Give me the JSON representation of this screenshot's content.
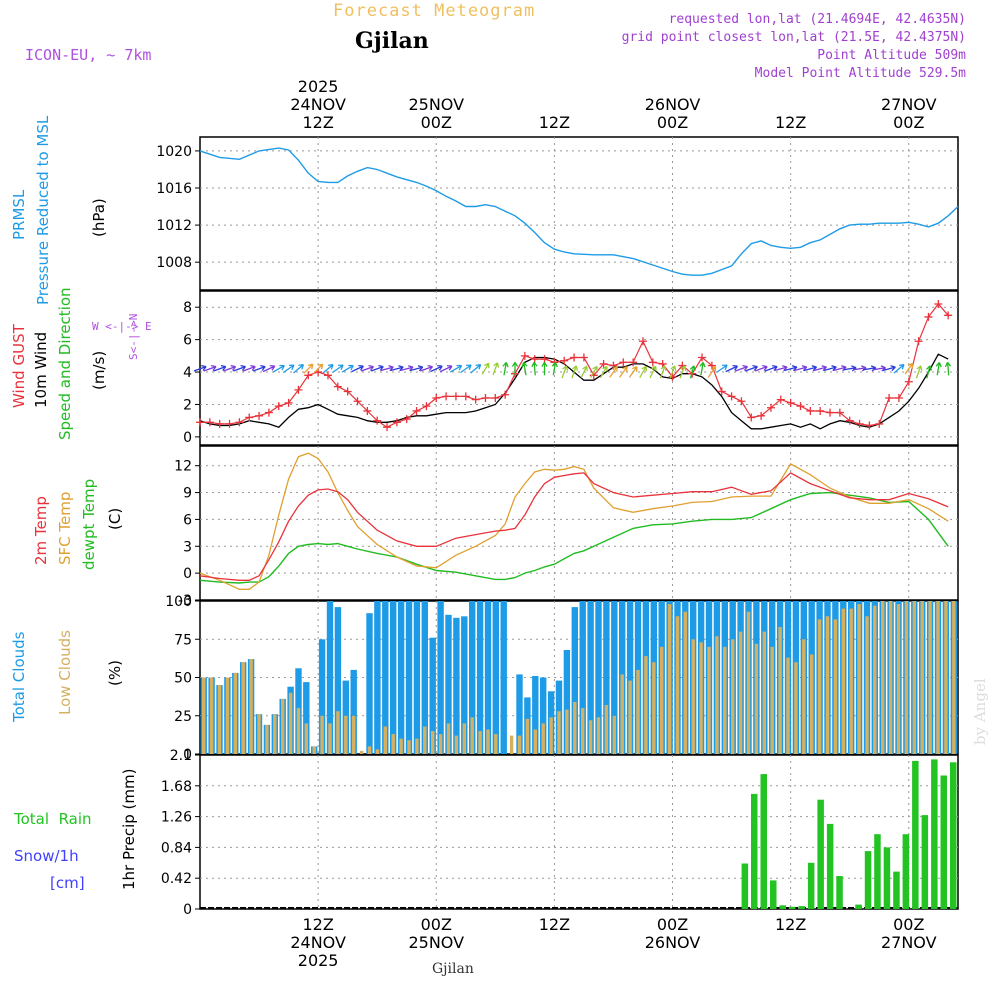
{
  "header": {
    "title": "Forecast Meteogram",
    "city": "Gjilan",
    "model": "ICON-EU, ~ 7km",
    "requested": "requested lon,lat (21.4694E, 42.4635N)",
    "grid_point": "grid point closest lon,lat (21.5E, 42.4375N)",
    "point_altitude": "Point Altitude 509m",
    "model_altitude": "Model Point Altitude 529.5m",
    "footer_city": "Gjilan",
    "watermark": "by Angel"
  },
  "colors": {
    "pressure": "#1e9be6",
    "gust": "#e8333b",
    "wind": "#000000",
    "direction": "#22bb22",
    "temp2m": "#e8333b",
    "sfctemp": "#e0a030",
    "dewpt": "#22bb22",
    "total_clouds": "#1e9be6",
    "low_clouds": "#d4b060",
    "rain": "#22c322",
    "snow": "#4040ff",
    "compass": "#b050e0"
  },
  "time_axis": {
    "top": [
      {
        "t": 12,
        "l1": "2025",
        "l2": "24NOV",
        "l3": "12Z"
      },
      {
        "t": 24,
        "l1": "",
        "l2": "25NOV",
        "l3": "00Z"
      },
      {
        "t": 36,
        "l1": "",
        "l2": "",
        "l3": "12Z"
      },
      {
        "t": 48,
        "l1": "",
        "l2": "26NOV",
        "l3": "00Z"
      },
      {
        "t": 60,
        "l1": "",
        "l2": "",
        "l3": "12Z"
      },
      {
        "t": 72,
        "l1": "",
        "l2": "27NOV",
        "l3": "00Z"
      }
    ],
    "bottom": [
      {
        "t": 12,
        "l1": "12Z",
        "l2": "24NOV",
        "l3": "2025"
      },
      {
        "t": 24,
        "l1": "00Z",
        "l2": "25NOV",
        "l3": ""
      },
      {
        "t": 36,
        "l1": "12Z",
        "l2": "",
        "l3": ""
      },
      {
        "t": 48,
        "l1": "00Z",
        "l2": "26NOV",
        "l3": ""
      },
      {
        "t": 60,
        "l1": "12Z",
        "l2": "",
        "l3": ""
      },
      {
        "t": 72,
        "l1": "00Z",
        "l2": "27NOV",
        "l3": ""
      }
    ]
  },
  "labels": {
    "pressure": [
      "PRMSL",
      "Pressure Reduced to MSL",
      "(hPa)"
    ],
    "wind": [
      "Wind GUST",
      "10m Wind",
      "Speed and Direction",
      "(m/s)"
    ],
    "compass": [
      "N",
      "W <-|-> E",
      "S"
    ],
    "temp": [
      "2m Temp",
      "SFC Temp",
      "dewpt Temp",
      "(C)"
    ],
    "clouds": [
      "Total Clouds",
      "Low Clouds",
      "(%)"
    ],
    "precip": [
      "Total  Rain",
      "Snow/1h",
      "[cm]",
      "1hr Precip (mm)"
    ]
  },
  "chart_data": [
    {
      "type": "line",
      "name": "pressure",
      "title": "PRMSL Pressure Reduced to MSL",
      "ylabel": "(hPa)",
      "ylim": [
        1005,
        1021.5
      ],
      "yticks": [
        1008,
        1012,
        1016,
        1020
      ],
      "x_hours": [
        0,
        2,
        4,
        6,
        8,
        9,
        10,
        11,
        12,
        13,
        14,
        15,
        16,
        17,
        18,
        19,
        20,
        21,
        22,
        23,
        24,
        25,
        26,
        27,
        28,
        29,
        30,
        31,
        32,
        33,
        34,
        35,
        36,
        37,
        38,
        40,
        42,
        44,
        46,
        48,
        49,
        50,
        51,
        52,
        53,
        54,
        55,
        56,
        57,
        58,
        59,
        60,
        61,
        62,
        63,
        64,
        65,
        66,
        67,
        68,
        69,
        70,
        71,
        72,
        73,
        74,
        75,
        76,
        77
      ],
      "values": [
        1020,
        1019.3,
        1019.1,
        1020,
        1020.3,
        1020.1,
        1019,
        1017.6,
        1016.7,
        1016.6,
        1016.6,
        1017.3,
        1017.8,
        1018.2,
        1018.0,
        1017.6,
        1017.2,
        1016.9,
        1016.6,
        1016.2,
        1015.7,
        1015.1,
        1014.6,
        1014.0,
        1014.0,
        1014.2,
        1014.0,
        1013.5,
        1013.0,
        1012.2,
        1011.2,
        1010.1,
        1009.4,
        1009.1,
        1008.9,
        1008.8,
        1008.8,
        1008.4,
        1007.7,
        1007.0,
        1006.7,
        1006.6,
        1006.6,
        1006.8,
        1007.2,
        1007.6,
        1008.9,
        1010.0,
        1010.3,
        1009.8,
        1009.6,
        1009.5,
        1009.6,
        1010.1,
        1010.4,
        1011.0,
        1011.6,
        1012.0,
        1012.1,
        1012.1,
        1012.2,
        1012.2,
        1012.2,
        1012.3,
        1012.1,
        1011.8,
        1012.2,
        1013.0,
        1014.0
      ]
    },
    {
      "type": "line",
      "name": "wind",
      "title": "Wind GUST / 10m Wind Speed and Direction",
      "ylabel": "(m/s)",
      "ylim": [
        -0.5,
        9
      ],
      "yticks": [
        0,
        2,
        4,
        6,
        8
      ],
      "x_hours": [
        0,
        1,
        2,
        3,
        4,
        5,
        6,
        7,
        8,
        9,
        10,
        11,
        12,
        13,
        14,
        15,
        16,
        17,
        18,
        19,
        20,
        21,
        22,
        23,
        24,
        25,
        26,
        27,
        28,
        29,
        30,
        31,
        32,
        33,
        34,
        35,
        36,
        37,
        38,
        39,
        40,
        41,
        42,
        43,
        44,
        45,
        46,
        47,
        48,
        49,
        50,
        51,
        52,
        53,
        54,
        55,
        56,
        57,
        58,
        59,
        60,
        61,
        62,
        63,
        64,
        65,
        66,
        67,
        68,
        69,
        70,
        71,
        72,
        73,
        74,
        75,
        76
      ],
      "series": [
        {
          "name": "Wind GUST",
          "values": [
            0.9,
            0.9,
            0.8,
            0.8,
            0.9,
            1.2,
            1.3,
            1.5,
            1.9,
            2.1,
            2.9,
            3.8,
            4.0,
            3.8,
            3.1,
            2.8,
            2.2,
            1.6,
            1.0,
            0.6,
            0.9,
            1.1,
            1.6,
            1.9,
            2.4,
            2.5,
            2.5,
            2.5,
            2.3,
            2.4,
            2.4,
            2.6,
            3.9,
            5.0,
            4.8,
            4.8,
            4.6,
            4.7,
            4.9,
            4.9,
            3.8,
            4.5,
            4.4,
            4.6,
            4.6,
            5.9,
            4.6,
            4.5,
            3.7,
            4.4,
            3.9,
            4.9,
            4.4,
            2.8,
            2.5,
            2.2,
            1.2,
            1.3,
            1.8,
            2.3,
            2.1,
            1.9,
            1.6,
            1.6,
            1.5,
            1.5,
            1.0,
            0.8,
            0.7,
            0.8,
            2.4,
            2.4,
            3.4,
            5.9,
            7.4,
            8.2,
            7.5
          ]
        },
        {
          "name": "10m Wind",
          "values": [
            1.0,
            0.8,
            0.7,
            0.7,
            0.8,
            1.0,
            0.9,
            0.8,
            0.6,
            1.2,
            1.7,
            1.8,
            2.0,
            1.7,
            1.4,
            1.3,
            1.2,
            1.0,
            0.9,
            0.9,
            1.0,
            1.2,
            1.3,
            1.3,
            1.4,
            1.5,
            1.5,
            1.5,
            1.6,
            1.8,
            2.0,
            2.7,
            3.6,
            4.6,
            4.9,
            4.9,
            4.8,
            4.5,
            4.0,
            3.5,
            3.5,
            3.9,
            4.3,
            4.3,
            4.5,
            4.5,
            4.2,
            3.7,
            3.6,
            3.9,
            3.9,
            3.7,
            3.2,
            2.5,
            1.5,
            1.0,
            0.5,
            0.5,
            0.6,
            0.7,
            0.8,
            0.6,
            0.8,
            0.5,
            0.8,
            1.0,
            0.9,
            0.7,
            0.6,
            0.8,
            1.2,
            1.6,
            2.2,
            3.0,
            4.0,
            5.1,
            4.8
          ]
        }
      ],
      "direction_hours": [
        0,
        1,
        2,
        3,
        4,
        5,
        6,
        7,
        8,
        9,
        10,
        11,
        12,
        13,
        14,
        15,
        16,
        17,
        18,
        19,
        20,
        21,
        22,
        23,
        24,
        25,
        26,
        27,
        28,
        29,
        30,
        31,
        32,
        33,
        34,
        35,
        36,
        37,
        38,
        39,
        40,
        41,
        42,
        43,
        44,
        45,
        46,
        47,
        48,
        49,
        50,
        51,
        52,
        53,
        54,
        55,
        56,
        57,
        58,
        59,
        60,
        61,
        62,
        63,
        64,
        65,
        66,
        67,
        68,
        69,
        70,
        71,
        72,
        73,
        74,
        75,
        76
      ],
      "direction_deg": [
        250,
        250,
        250,
        250,
        250,
        250,
        250,
        245,
        240,
        235,
        230,
        225,
        225,
        230,
        235,
        240,
        245,
        250,
        250,
        255,
        255,
        255,
        255,
        250,
        245,
        245,
        240,
        235,
        230,
        210,
        200,
        190,
        180,
        170,
        175,
        180,
        190,
        200,
        200,
        205,
        210,
        210,
        215,
        215,
        215,
        210,
        205,
        200,
        200,
        200,
        195,
        190,
        215,
        235,
        245,
        250,
        250,
        250,
        250,
        255,
        255,
        255,
        255,
        255,
        255,
        255,
        260,
        260,
        260,
        260,
        255,
        230,
        215,
        200,
        195,
        190,
        175
      ]
    },
    {
      "type": "line",
      "name": "temperature",
      "title": "2m Temp / SFC Temp / dewpt Temp",
      "ylabel": "(C)",
      "ylim": [
        -3,
        14.2
      ],
      "yticks": [
        -3,
        0,
        3,
        6,
        9,
        12
      ],
      "x_hours": [
        0,
        2,
        4,
        5,
        6,
        7,
        8,
        9,
        10,
        11,
        12,
        13,
        14,
        15,
        16,
        18,
        20,
        22,
        24,
        26,
        28,
        30,
        31,
        32,
        33,
        34,
        35,
        36,
        37,
        38,
        39,
        40,
        42,
        44,
        46,
        48,
        50,
        52,
        54,
        56,
        58,
        60,
        62,
        64,
        66,
        68,
        70,
        72,
        74,
        76
      ],
      "series": [
        {
          "name": "2m Temp",
          "values": [
            -0.3,
            -0.6,
            -0.8,
            -0.8,
            -0.3,
            1.5,
            3.5,
            5.8,
            7.5,
            8.7,
            9.3,
            9.4,
            9.1,
            8.2,
            6.8,
            4.8,
            3.6,
            3.0,
            3.0,
            3.9,
            4.3,
            4.7,
            4.8,
            5.0,
            6.5,
            8.5,
            10.0,
            10.7,
            10.9,
            11.1,
            11.2,
            10.0,
            9.0,
            8.5,
            8.7,
            8.9,
            9.1,
            9.1,
            9.6,
            8.8,
            9.2,
            11.2,
            10.0,
            9.2,
            8.4,
            8.2,
            8.2,
            8.9,
            8.3,
            7.4
          ]
        },
        {
          "name": "SFC Temp",
          "values": [
            0,
            -0.8,
            -1.8,
            -1.8,
            -1.0,
            2.0,
            6.5,
            10.5,
            13.0,
            13.4,
            12.8,
            11.3,
            9.0,
            7.0,
            5.2,
            3.2,
            1.8,
            0.8,
            0.6,
            2.0,
            3.0,
            4.2,
            5.5,
            8.5,
            10.0,
            11.3,
            11.6,
            11.5,
            11.6,
            11.9,
            11.6,
            9.5,
            7.3,
            6.8,
            7.2,
            7.5,
            7.9,
            8.0,
            8.5,
            8.6,
            8.6,
            12.2,
            11.0,
            9.5,
            8.5,
            7.8,
            7.8,
            8.2,
            7.2,
            5.8
          ]
        },
        {
          "name": "dewpt Temp",
          "values": [
            -0.8,
            -1.0,
            -1.1,
            -1.0,
            -1.0,
            -0.4,
            0.8,
            2.2,
            3.0,
            3.2,
            3.3,
            3.2,
            3.3,
            3.0,
            2.7,
            2.2,
            1.8,
            1.0,
            0.3,
            0.1,
            -0.3,
            -0.7,
            -0.7,
            -0.5,
            0,
            0.3,
            0.7,
            1.0,
            1.6,
            2.2,
            2.5,
            3.0,
            4.0,
            5.0,
            5.4,
            5.5,
            5.8,
            6.0,
            6.0,
            6.2,
            7.2,
            8.2,
            8.9,
            9.0,
            8.7,
            8.4,
            7.9,
            8.0,
            6.0,
            3.0
          ]
        }
      ]
    },
    {
      "type": "bar",
      "name": "clouds",
      "title": "Total Clouds / Low Clouds",
      "ylabel": "(%)",
      "ylim": [
        0,
        100
      ],
      "yticks": [
        0,
        25,
        50,
        75,
        100
      ],
      "x_hours_start": 0,
      "series": [
        {
          "name": "Total Clouds",
          "values": [
            50,
            50,
            45,
            50,
            53,
            60,
            62,
            26,
            19,
            26,
            36,
            44,
            56,
            47,
            5,
            75,
            100,
            96,
            48,
            55,
            0,
            92,
            100,
            100,
            100,
            100,
            100,
            100,
            100,
            76,
            100,
            91,
            89,
            90,
            100,
            100,
            100,
            100,
            100,
            0,
            52,
            37,
            51,
            50,
            41,
            48,
            68,
            96,
            100,
            100,
            100,
            100,
            100,
            100,
            100,
            100,
            100,
            100,
            100,
            100,
            100,
            100,
            100,
            100,
            100,
            100,
            100,
            100,
            100,
            100,
            100,
            100,
            100,
            100,
            100,
            100,
            100,
            100,
            100,
            100,
            100,
            100,
            100,
            100,
            100,
            100,
            100,
            100,
            100,
            100,
            100,
            100,
            100,
            100,
            100,
            100
          ]
        },
        {
          "name": "Low Clouds",
          "values": [
            50,
            50,
            45,
            50,
            53,
            60,
            62,
            26,
            19,
            26,
            36,
            40,
            30,
            20,
            5,
            25,
            20,
            28,
            25,
            25,
            2,
            5,
            3,
            18,
            13,
            10,
            9,
            10,
            18,
            15,
            13,
            20,
            12,
            20,
            24,
            15,
            16,
            13,
            0,
            12,
            12,
            23,
            16,
            20,
            24,
            28,
            29,
            34,
            30,
            22,
            24,
            32,
            25,
            52,
            48,
            55,
            64,
            60,
            70,
            98,
            90,
            93,
            75,
            73,
            70,
            77,
            70,
            75,
            80,
            93,
            72,
            80,
            70,
            83,
            63,
            60,
            75,
            65,
            88,
            90,
            88,
            95,
            95,
            98,
            90,
            97,
            100,
            100,
            98,
            100,
            100,
            100,
            100,
            100,
            100,
            100
          ]
        }
      ]
    },
    {
      "type": "bar",
      "name": "precip",
      "title": "1hr Precip (mm)",
      "ylabel": "1hr Precip (mm)",
      "ylim": [
        0,
        2.1
      ],
      "yticks": [
        0,
        0.42,
        0.84,
        1.26,
        1.68,
        2.1
      ],
      "x_hours_start": 0,
      "series": [
        {
          "name": "Total Rain",
          "values": [
            0,
            0,
            0,
            0,
            0,
            0,
            0,
            0,
            0,
            0,
            0,
            0,
            0,
            0,
            0,
            0,
            0,
            0,
            0,
            0,
            0,
            0,
            0,
            0,
            0,
            0,
            0,
            0,
            0,
            0,
            0,
            0,
            0,
            0,
            0,
            0,
            0,
            0,
            0,
            0,
            0,
            0,
            0,
            0,
            0,
            0,
            0,
            0,
            0,
            0,
            0,
            0,
            0,
            0,
            0,
            0,
            0,
            0.62,
            1.57,
            1.84,
            0.39,
            0.05,
            0.03,
            0.04,
            0.63,
            1.49,
            1.16,
            0.45,
            0,
            0.06,
            0.79,
            1.02,
            0.84,
            0.51,
            1.02,
            2.02,
            1.28,
            2.04,
            1.82,
            2.0
          ]
        },
        {
          "name": "Snow/1h",
          "values": []
        }
      ]
    }
  ]
}
